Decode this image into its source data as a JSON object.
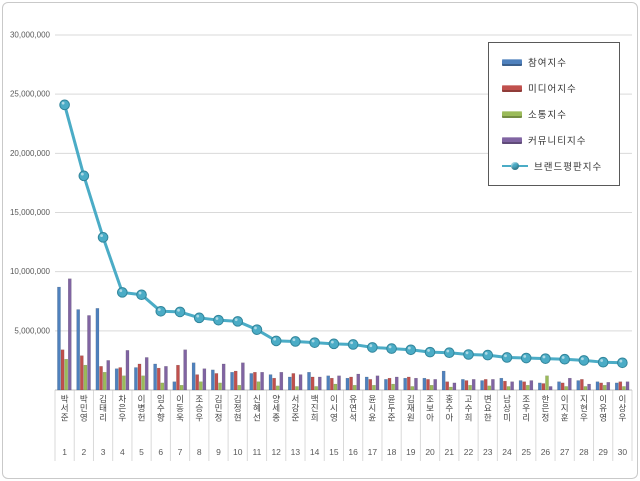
{
  "frame": {
    "background": "#ffffff",
    "border_color": "#c9c9c9"
  },
  "chart_data": {
    "type": "bar+line",
    "title": "",
    "xlabel": "",
    "ylabel": "",
    "grid": true,
    "legend_position": "top-right",
    "ylim": [
      0,
      30000000
    ],
    "y_axis": {
      "tick_values": [
        5000000,
        10000000,
        15000000,
        20000000,
        25000000,
        30000000
      ],
      "tick_labels": [
        "5,000,000",
        "10,000,000",
        "15,000,000",
        "20,000,000",
        "25,000,000",
        "30,000,000"
      ]
    },
    "categories": [
      "박서준",
      "박민영",
      "김태리",
      "차은우",
      "이병헌",
      "임수향",
      "이동욱",
      "조승우",
      "김민정",
      "김정현",
      "신혜선",
      "양세종",
      "서강준",
      "백진희",
      "이시영",
      "유연석",
      "윤시윤",
      "윤두준",
      "김재원",
      "조보아",
      "홍수아",
      "고수희",
      "변요한",
      "남상미",
      "조우리",
      "한은정",
      "이지훈",
      "지현우",
      "이유영",
      "이상우"
    ],
    "ranks": [
      "1",
      "2",
      "3",
      "4",
      "5",
      "6",
      "7",
      "8",
      "9",
      "10",
      "11",
      "12",
      "13",
      "14",
      "15",
      "16",
      "17",
      "18",
      "19",
      "20",
      "21",
      "22",
      "23",
      "24",
      "25",
      "26",
      "27",
      "28",
      "29",
      "30"
    ],
    "series": [
      {
        "name": "참여지수",
        "type": "bar",
        "color": "#4F81BD",
        "values": [
          8700000,
          6800000,
          6900000,
          1800000,
          1900000,
          2200000,
          700000,
          2300000,
          1700000,
          1500000,
          1400000,
          1300000,
          1100000,
          1500000,
          1200000,
          1000000,
          1100000,
          900000,
          1000000,
          1000000,
          1600000,
          900000,
          800000,
          1000000,
          800000,
          600000,
          700000,
          800000,
          700000,
          600000
        ]
      },
      {
        "name": "미디어지수",
        "type": "bar",
        "color": "#C0504D",
        "values": [
          3400000,
          2900000,
          2000000,
          1900000,
          2200000,
          1850000,
          2100000,
          1300000,
          1400000,
          1600000,
          1500000,
          1000000,
          1400000,
          1100000,
          1000000,
          1100000,
          900000,
          1000000,
          1100000,
          900000,
          700000,
          800000,
          900000,
          750000,
          700000,
          550000,
          600000,
          900000,
          600000,
          700000
        ]
      },
      {
        "name": "소통지수",
        "type": "bar",
        "color": "#9BBB59",
        "values": [
          2600000,
          2100000,
          1500000,
          1200000,
          1200000,
          600000,
          400000,
          700000,
          600000,
          400000,
          700000,
          350000,
          300000,
          300000,
          500000,
          400000,
          400000,
          500000,
          300000,
          400000,
          250000,
          400000,
          350000,
          300000,
          400000,
          1200000,
          300000,
          300000,
          400000,
          300000
        ]
      },
      {
        "name": "커뮤니티지수",
        "type": "bar",
        "color": "#8064A2",
        "values": [
          9400000,
          6300000,
          2500000,
          3350000,
          2750000,
          2000000,
          3400000,
          1800000,
          2200000,
          2300000,
          1500000,
          1500000,
          1300000,
          1100000,
          1200000,
          1350000,
          1200000,
          1100000,
          1000000,
          900000,
          600000,
          900000,
          900000,
          700000,
          800000,
          300000,
          1000000,
          500000,
          650000,
          700000
        ]
      },
      {
        "name": "브랜드평판지수",
        "type": "line",
        "color": "#4BACC6",
        "marker_stroke": "#31859B",
        "values": [
          24100000,
          18100000,
          12900000,
          8250000,
          8050000,
          6650000,
          6600000,
          6100000,
          5900000,
          5800000,
          5100000,
          4150000,
          4100000,
          4000000,
          3900000,
          3850000,
          3600000,
          3500000,
          3400000,
          3200000,
          3150000,
          3000000,
          2950000,
          2750000,
          2700000,
          2650000,
          2600000,
          2500000,
          2350000,
          2300000
        ]
      }
    ],
    "colors": {
      "gridline": "#d9d9d9",
      "axis_line": "#bfbfbf",
      "tick_text": "#595959",
      "category_text": "#444444"
    }
  }
}
